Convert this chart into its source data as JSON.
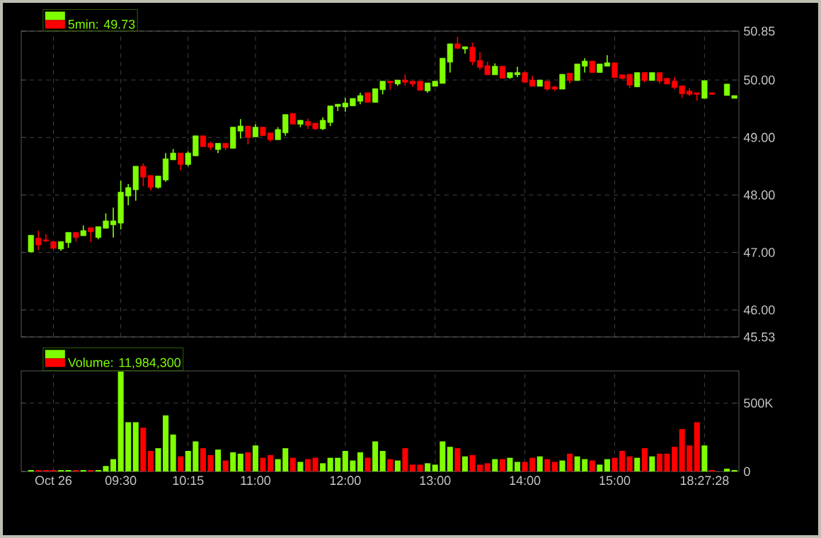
{
  "chart_data": [
    {
      "type": "candlestick",
      "categories": [
        null,
        null,
        null,
        null,
        null,
        null,
        null,
        null,
        null,
        null,
        null,
        null,
        null,
        null,
        null,
        null,
        null,
        null,
        null,
        null,
        null,
        null,
        null,
        null,
        null,
        null,
        null,
        null,
        null,
        null,
        null,
        null,
        null,
        null,
        null,
        null,
        null,
        null,
        null,
        null,
        null,
        null,
        null,
        null,
        null,
        null,
        null,
        null,
        null,
        null,
        null,
        null,
        null,
        null,
        null,
        null,
        null,
        null,
        null,
        null,
        null,
        null,
        null,
        null,
        null,
        null,
        null,
        null,
        null,
        null,
        null,
        null,
        null,
        null,
        null,
        null,
        null,
        null,
        null,
        null,
        null,
        null,
        null,
        null,
        null,
        null,
        null,
        null,
        null,
        null,
        null,
        null,
        null,
        null,
        null
      ],
      "series": [
        {
          "name": "5min: 49.73",
          "ohlc": [
            [
              47.01,
              47.3,
              47.0,
              47.3
            ],
            [
              47.25,
              47.38,
              47.04,
              47.13
            ],
            [
              47.22,
              47.32,
              47.18,
              47.2
            ],
            [
              47.19,
              47.19,
              47.07,
              47.07
            ],
            [
              47.06,
              47.19,
              47.03,
              47.19
            ],
            [
              47.17,
              47.35,
              47.08,
              47.35
            ],
            [
              47.35,
              47.35,
              47.19,
              47.26
            ],
            [
              47.29,
              47.47,
              47.29,
              47.38
            ],
            [
              47.43,
              47.43,
              47.18,
              47.36
            ],
            [
              47.26,
              47.45,
              47.23,
              47.45
            ],
            [
              47.42,
              47.68,
              47.42,
              47.55
            ],
            [
              47.48,
              47.78,
              47.26,
              47.55
            ],
            [
              47.51,
              48.25,
              47.4,
              48.05
            ],
            [
              47.98,
              48.19,
              47.82,
              48.13
            ],
            [
              48.09,
              48.5,
              47.9,
              48.5
            ],
            [
              48.5,
              48.55,
              48.15,
              48.31
            ],
            [
              48.34,
              48.34,
              48.08,
              48.13
            ],
            [
              48.13,
              48.33,
              48.11,
              48.33
            ],
            [
              48.26,
              48.73,
              48.23,
              48.63
            ],
            [
              48.61,
              48.8,
              48.61,
              48.73
            ],
            [
              48.73,
              48.73,
              48.43,
              48.53
            ],
            [
              48.53,
              48.76,
              48.5,
              48.73
            ],
            [
              48.68,
              49.03,
              48.68,
              49.03
            ],
            [
              49.03,
              49.03,
              48.84,
              48.84
            ],
            [
              48.9,
              48.93,
              48.78,
              48.83
            ],
            [
              48.79,
              48.9,
              48.73,
              48.9
            ],
            [
              48.9,
              48.9,
              48.78,
              48.82
            ],
            [
              48.81,
              49.18,
              48.81,
              49.18
            ],
            [
              49.11,
              49.32,
              48.98,
              49.2
            ],
            [
              49.2,
              49.2,
              48.88,
              49.0
            ],
            [
              49.01,
              49.23,
              49.01,
              49.18
            ],
            [
              49.18,
              49.18,
              49.03,
              49.03
            ],
            [
              49.08,
              49.08,
              48.93,
              48.96
            ],
            [
              48.96,
              49.18,
              48.96,
              49.14
            ],
            [
              49.08,
              49.4,
              49.03,
              49.4
            ],
            [
              49.42,
              49.42,
              49.23,
              49.23
            ],
            [
              49.23,
              49.3,
              49.18,
              49.3
            ],
            [
              49.28,
              49.33,
              49.15,
              49.21
            ],
            [
              49.25,
              49.25,
              49.13,
              49.15
            ],
            [
              49.15,
              49.35,
              49.13,
              49.3
            ],
            [
              49.26,
              49.55,
              49.2,
              49.55
            ],
            [
              49.54,
              49.58,
              49.46,
              49.58
            ],
            [
              49.53,
              49.69,
              49.45,
              49.6
            ],
            [
              49.55,
              49.68,
              49.55,
              49.68
            ],
            [
              49.63,
              49.78,
              49.58,
              49.73
            ],
            [
              49.78,
              49.78,
              49.61,
              49.61
            ],
            [
              49.61,
              49.85,
              49.61,
              49.85
            ],
            [
              49.83,
              49.98,
              49.75,
              49.98
            ],
            [
              49.98,
              49.98,
              49.83,
              49.95
            ],
            [
              49.93,
              50.0,
              49.9,
              50.0
            ],
            [
              50.0,
              50.1,
              49.9,
              49.96
            ],
            [
              49.98,
              49.98,
              49.88,
              49.93
            ],
            [
              49.98,
              49.98,
              49.82,
              49.82
            ],
            [
              49.81,
              49.95,
              49.78,
              49.95
            ],
            [
              49.89,
              49.98,
              49.89,
              49.98
            ],
            [
              49.94,
              50.38,
              49.94,
              50.38
            ],
            [
              50.31,
              50.63,
              50.13,
              50.63
            ],
            [
              50.63,
              50.75,
              50.55,
              50.55
            ],
            [
              50.54,
              50.58,
              50.46,
              50.58
            ],
            [
              50.57,
              50.65,
              50.26,
              50.32
            ],
            [
              50.34,
              50.48,
              50.18,
              50.22
            ],
            [
              50.25,
              50.32,
              50.09,
              50.09
            ],
            [
              50.09,
              50.29,
              50.09,
              50.24
            ],
            [
              50.24,
              50.24,
              50.03,
              50.03
            ],
            [
              50.04,
              50.13,
              50.02,
              50.13
            ],
            [
              50.09,
              50.23,
              50.05,
              50.13
            ],
            [
              50.13,
              50.15,
              49.96,
              49.96
            ],
            [
              50.0,
              50.07,
              49.89,
              49.89
            ],
            [
              49.89,
              50.0,
              49.89,
              50.0
            ],
            [
              49.98,
              49.98,
              49.81,
              49.84
            ],
            [
              49.88,
              49.9,
              49.81,
              49.84
            ],
            [
              49.84,
              50.1,
              49.84,
              50.1
            ],
            [
              50.12,
              50.12,
              49.94,
              49.99
            ],
            [
              49.99,
              50.28,
              49.99,
              50.28
            ],
            [
              50.24,
              50.38,
              50.13,
              50.33
            ],
            [
              50.33,
              50.33,
              50.13,
              50.13
            ],
            [
              50.13,
              50.28,
              50.13,
              50.28
            ],
            [
              50.24,
              50.43,
              50.24,
              50.3
            ],
            [
              50.3,
              50.3,
              50.04,
              50.04
            ],
            [
              50.09,
              50.09,
              50.01,
              50.03
            ],
            [
              50.1,
              50.1,
              49.86,
              49.91
            ],
            [
              49.88,
              50.13,
              49.88,
              50.13
            ],
            [
              50.13,
              50.13,
              49.96,
              49.99
            ],
            [
              49.99,
              50.13,
              49.99,
              50.13
            ],
            [
              50.13,
              50.13,
              49.94,
              49.98
            ],
            [
              50.03,
              50.03,
              49.93,
              49.93
            ],
            [
              49.98,
              50.05,
              49.84,
              49.87
            ],
            [
              49.9,
              49.9,
              49.69,
              49.76
            ],
            [
              49.81,
              49.86,
              49.72,
              49.75
            ],
            [
              49.78,
              49.78,
              49.64,
              49.75
            ],
            [
              49.68,
              49.99,
              49.68,
              49.99
            ],
            [
              49.78,
              49.78,
              49.75,
              49.75
            ],
            null,
            [
              49.73,
              49.93,
              49.73,
              49.93
            ],
            [
              49.68,
              49.73,
              49.68,
              49.73
            ]
          ],
          "colors": [
            "#80ff00",
            "#ff0000",
            "#ff0000",
            "#ff0000",
            "#80ff00",
            "#80ff00",
            "#ff0000",
            "#80ff00",
            "#ff0000",
            "#80ff00",
            "#80ff00",
            "#80ff00",
            "#80ff00",
            "#80ff00",
            "#80ff00",
            "#ff0000",
            "#ff0000",
            "#80ff00",
            "#80ff00",
            "#80ff00",
            "#ff0000",
            "#80ff00",
            "#80ff00",
            "#ff0000",
            "#ff0000",
            "#80ff00",
            "#ff0000",
            "#80ff00",
            "#80ff00",
            "#ff0000",
            "#80ff00",
            "#ff0000",
            "#ff0000",
            "#80ff00",
            "#80ff00",
            "#ff0000",
            "#80ff00",
            "#ff0000",
            "#ff0000",
            "#80ff00",
            "#80ff00",
            "#80ff00",
            "#80ff00",
            "#80ff00",
            "#80ff00",
            "#ff0000",
            "#80ff00",
            "#80ff00",
            "#ff0000",
            "#80ff00",
            "#ff0000",
            "#ff0000",
            "#ff0000",
            "#80ff00",
            "#80ff00",
            "#80ff00",
            "#80ff00",
            "#ff0000",
            "#80ff00",
            "#ff0000",
            "#ff0000",
            "#ff0000",
            "#80ff00",
            "#ff0000",
            "#80ff00",
            "#80ff00",
            "#ff0000",
            "#ff0000",
            "#80ff00",
            "#ff0000",
            "#ff0000",
            "#80ff00",
            "#ff0000",
            "#80ff00",
            "#80ff00",
            "#ff0000",
            "#80ff00",
            "#80ff00",
            "#ff0000",
            "#ff0000",
            "#ff0000",
            "#80ff00",
            "#ff0000",
            "#80ff00",
            "#ff0000",
            "#ff0000",
            "#ff0000",
            "#ff0000",
            "#ff0000",
            "#ff0000",
            "#80ff00",
            "#ff0000",
            null,
            "#80ff00",
            "#80ff00"
          ]
        }
      ],
      "ylim": [
        45.53,
        50.85
      ],
      "yticks": [
        45.53,
        {
          "value": 46,
          "label": "46.00"
        },
        {
          "value": 47,
          "label": "47.00"
        },
        {
          "value": 48,
          "label": "48.00"
        },
        {
          "value": 49,
          "label": "49.00"
        },
        {
          "value": 50,
          "label": "50.00"
        },
        50.85
      ],
      "grid": true,
      "legend": "top left",
      "tick_labels": "y"
    },
    {
      "type": "bar",
      "categories": [
        null,
        null,
        null,
        "Oct 26",
        null,
        null,
        null,
        null,
        null,
        null,
        null,
        null,
        "09:30",
        null,
        null,
        null,
        null,
        null,
        null,
        null,
        null,
        "10:15",
        null,
        null,
        null,
        null,
        null,
        null,
        null,
        null,
        "11:00",
        null,
        null,
        null,
        null,
        null,
        null,
        null,
        null,
        null,
        null,
        null,
        "12:00",
        null,
        null,
        null,
        null,
        null,
        null,
        null,
        null,
        null,
        null,
        null,
        "13:00",
        null,
        null,
        null,
        null,
        null,
        null,
        null,
        null,
        null,
        null,
        null,
        "14:00",
        null,
        null,
        null,
        null,
        null,
        null,
        null,
        null,
        null,
        null,
        null,
        "15:00",
        null,
        null,
        null,
        null,
        null,
        null,
        null,
        null,
        null,
        null,
        null,
        "18:27:28",
        null,
        null,
        null,
        null
      ],
      "series": [
        {
          "name": "Volume: 11,984,300",
          "values": [
            10000,
            10000,
            10000,
            10000,
            10000,
            10000,
            10000,
            10000,
            10000,
            10000,
            40000,
            90000,
            730000,
            360000,
            360000,
            320000,
            150000,
            170000,
            410000,
            270000,
            110000,
            150000,
            220000,
            170000,
            120000,
            160000,
            80000,
            140000,
            130000,
            140000,
            190000,
            100000,
            120000,
            90000,
            170000,
            100000,
            70000,
            90000,
            100000,
            60000,
            100000,
            100000,
            150000,
            80000,
            140000,
            100000,
            220000,
            150000,
            90000,
            80000,
            170000,
            50000,
            50000,
            60000,
            50000,
            220000,
            180000,
            170000,
            110000,
            120000,
            50000,
            60000,
            90000,
            90000,
            100000,
            70000,
            70000,
            100000,
            110000,
            90000,
            70000,
            80000,
            130000,
            110000,
            90000,
            80000,
            50000,
            90000,
            100000,
            150000,
            110000,
            100000,
            170000,
            110000,
            130000,
            130000,
            180000,
            310000,
            190000,
            360000,
            190000,
            10000,
            null,
            20000,
            10000
          ],
          "colors": [
            "#80ff00",
            "#ff0000",
            "#ff0000",
            "#ff0000",
            "#80ff00",
            "#80ff00",
            "#ff0000",
            "#80ff00",
            "#ff0000",
            "#80ff00",
            "#80ff00",
            "#80ff00",
            "#80ff00",
            "#80ff00",
            "#80ff00",
            "#ff0000",
            "#ff0000",
            "#80ff00",
            "#80ff00",
            "#80ff00",
            "#ff0000",
            "#80ff00",
            "#80ff00",
            "#ff0000",
            "#ff0000",
            "#80ff00",
            "#ff0000",
            "#80ff00",
            "#80ff00",
            "#ff0000",
            "#80ff00",
            "#ff0000",
            "#ff0000",
            "#80ff00",
            "#80ff00",
            "#ff0000",
            "#80ff00",
            "#ff0000",
            "#ff0000",
            "#80ff00",
            "#80ff00",
            "#80ff00",
            "#80ff00",
            "#80ff00",
            "#80ff00",
            "#ff0000",
            "#80ff00",
            "#80ff00",
            "#ff0000",
            "#80ff00",
            "#ff0000",
            "#ff0000",
            "#ff0000",
            "#80ff00",
            "#80ff00",
            "#80ff00",
            "#80ff00",
            "#ff0000",
            "#80ff00",
            "#ff0000",
            "#ff0000",
            "#ff0000",
            "#80ff00",
            "#ff0000",
            "#80ff00",
            "#80ff00",
            "#ff0000",
            "#ff0000",
            "#80ff00",
            "#ff0000",
            "#ff0000",
            "#80ff00",
            "#ff0000",
            "#80ff00",
            "#80ff00",
            "#ff0000",
            "#80ff00",
            "#80ff00",
            "#ff0000",
            "#ff0000",
            "#ff0000",
            "#80ff00",
            "#ff0000",
            "#80ff00",
            "#ff0000",
            "#ff0000",
            "#ff0000",
            "#ff0000",
            "#ff0000",
            "#ff0000",
            "#80ff00",
            "#ff0000",
            null,
            "#80ff00",
            "#80ff00"
          ]
        }
      ],
      "ylim": [
        0,
        735000
      ],
      "yticks": [
        0,
        {
          "value": 500000,
          "label": "500K"
        }
      ],
      "grid": true,
      "legend": "top left"
    }
  ]
}
